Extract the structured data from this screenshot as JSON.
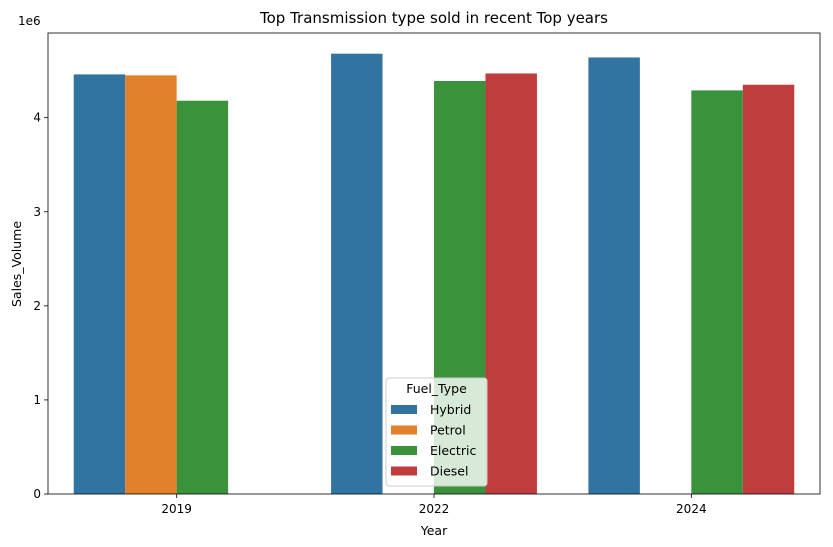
{
  "chart_data": {
    "type": "bar",
    "title": "Top Transmission type sold in recent Top years",
    "xlabel": "Year",
    "ylabel": "Sales_Volume",
    "y_scale_label": "1e6",
    "ylim": [
      0,
      4.9
    ],
    "yticks": [
      0,
      1,
      2,
      3,
      4
    ],
    "categories": [
      "2019",
      "2022",
      "2024"
    ],
    "legend": {
      "title": "Fuel_Type",
      "placement": "lower-center"
    },
    "series": [
      {
        "name": "Hybrid",
        "color": "#3274a1",
        "values": [
          4.46,
          4.68,
          4.64
        ]
      },
      {
        "name": "Petrol",
        "color": "#e1812c",
        "values": [
          4.45,
          null,
          null
        ]
      },
      {
        "name": "Electric",
        "color": "#3a923a",
        "values": [
          4.18,
          4.39,
          4.29
        ]
      },
      {
        "name": "Diesel",
        "color": "#c03d3e",
        "values": [
          null,
          4.47,
          4.35
        ]
      }
    ]
  }
}
